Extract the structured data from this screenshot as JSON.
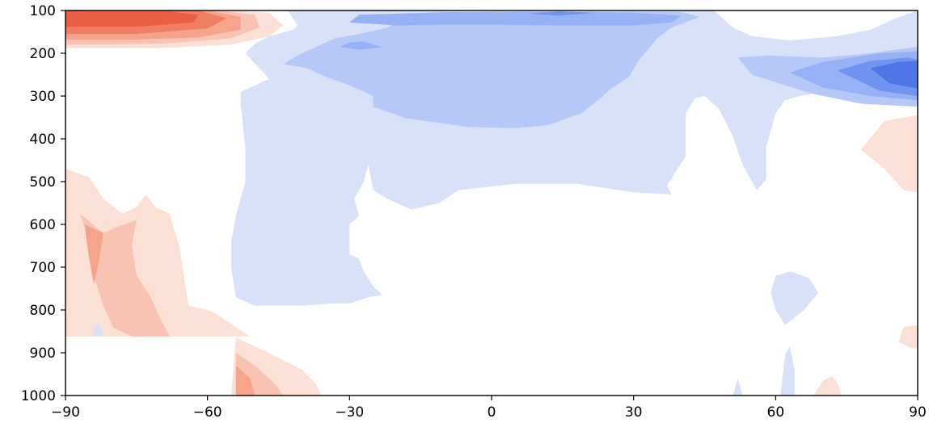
{
  "chart_data": {
    "type": "heatmap",
    "subtype": "filled-contour",
    "title": "",
    "xlabel": "",
    "ylabel": "",
    "xlim": [
      -90,
      90
    ],
    "ylim": [
      1000,
      100
    ],
    "x_ticks": [
      -90,
      -60,
      -30,
      0,
      30,
      60,
      90
    ],
    "x_tick_labels": [
      "−90",
      "−60",
      "−30",
      "0",
      "30",
      "60",
      "90"
    ],
    "y_ticks": [
      100,
      200,
      300,
      400,
      500,
      600,
      700,
      800,
      900,
      1000
    ],
    "y_tick_labels": [
      "100",
      "200",
      "300",
      "400",
      "500",
      "600",
      "700",
      "800",
      "900",
      "1000"
    ],
    "y_inverted": true,
    "grid": false,
    "legend": "none",
    "colormap": "coolwarm",
    "level_colors": {
      "b4": "#4f76e6",
      "b3": "#7094f0",
      "b2": "#97b1f6",
      "b1": "#b5c8f8",
      "b0": "#d9e1f9",
      "r0": "#fbe0d6",
      "r1": "#f8c3b3",
      "r2": "#f6a38c",
      "r3": "#f07e62",
      "r4": "#e85f44"
    },
    "regions": [
      {
        "level": "r0",
        "points": [
          [
            -90,
            100
          ],
          [
            -55,
            100
          ],
          [
            -47,
            105
          ],
          [
            -44,
            135
          ],
          [
            -47,
            160
          ],
          [
            -55,
            180
          ],
          [
            -70,
            188
          ],
          [
            -90,
            188
          ]
        ]
      },
      {
        "level": "r1",
        "points": [
          [
            -90,
            100
          ],
          [
            -58,
            100
          ],
          [
            -50,
            110
          ],
          [
            -49,
            140
          ],
          [
            -55,
            165
          ],
          [
            -70,
            178
          ],
          [
            -90,
            180
          ]
        ]
      },
      {
        "level": "r2",
        "points": [
          [
            -90,
            100
          ],
          [
            -60,
            100
          ],
          [
            -53,
            115
          ],
          [
            -53,
            145
          ],
          [
            -62,
            163
          ],
          [
            -75,
            168
          ],
          [
            -90,
            168
          ]
        ]
      },
      {
        "level": "r3",
        "points": [
          [
            -90,
            100
          ],
          [
            -62,
            100
          ],
          [
            -56,
            118
          ],
          [
            -60,
            142
          ],
          [
            -75,
            155
          ],
          [
            -90,
            155
          ]
        ]
      },
      {
        "level": "r4",
        "points": [
          [
            -90,
            100
          ],
          [
            -70,
            100
          ],
          [
            -62,
            110
          ],
          [
            -63,
            128
          ],
          [
            -75,
            138
          ],
          [
            -90,
            138
          ]
        ]
      },
      {
        "level": "r0",
        "points": [
          [
            -90,
            470
          ],
          [
            -85,
            490
          ],
          [
            -82,
            540
          ],
          [
            -78,
            575
          ],
          [
            -75,
            560
          ],
          [
            -73,
            530
          ],
          [
            -71,
            560
          ],
          [
            -68,
            575
          ],
          [
            -66,
            650
          ],
          [
            -64,
            790
          ],
          [
            -60,
            800
          ],
          [
            -58,
            810
          ],
          [
            -53,
            848
          ],
          [
            -51,
            862
          ],
          [
            -90,
            862
          ]
        ]
      },
      {
        "level": "r1",
        "points": [
          [
            -87,
            575
          ],
          [
            -85,
            630
          ],
          [
            -84,
            720
          ],
          [
            -82,
            790
          ],
          [
            -80,
            840
          ],
          [
            -76,
            862
          ],
          [
            -68,
            862
          ],
          [
            -70,
            820
          ],
          [
            -72,
            770
          ],
          [
            -75,
            720
          ],
          [
            -76,
            650
          ],
          [
            -75,
            590
          ],
          [
            -79,
            605
          ],
          [
            -82,
            620
          ]
        ]
      },
      {
        "level": "r2",
        "points": [
          [
            -86,
            600
          ],
          [
            -85,
            680
          ],
          [
            -84,
            740
          ],
          [
            -83,
            690
          ],
          [
            -82,
            620
          ]
        ]
      },
      {
        "level": "r0",
        "points": [
          [
            -54,
            865
          ],
          [
            -48,
            895
          ],
          [
            -40,
            940
          ],
          [
            -37,
            975
          ],
          [
            -36,
            1000
          ],
          [
            -55,
            1000
          ]
        ]
      },
      {
        "level": "r1",
        "points": [
          [
            -54,
            900
          ],
          [
            -50,
            930
          ],
          [
            -46,
            970
          ],
          [
            -44,
            1000
          ],
          [
            -54,
            1000
          ]
        ]
      },
      {
        "level": "r2",
        "points": [
          [
            -54,
            930
          ],
          [
            -51,
            960
          ],
          [
            -50,
            1000
          ],
          [
            -54,
            1000
          ]
        ]
      },
      {
        "level": "r0",
        "points": [
          [
            90,
            345
          ],
          [
            83,
            358
          ],
          [
            78,
            425
          ],
          [
            83,
            470
          ],
          [
            87,
            520
          ],
          [
            90,
            525
          ]
        ]
      },
      {
        "level": "r0",
        "points": [
          [
            90,
            835
          ],
          [
            87,
            840
          ],
          [
            86,
            875
          ],
          [
            89,
            890
          ],
          [
            90,
            890
          ]
        ]
      },
      {
        "level": "r0",
        "points": [
          [
            68,
            1000
          ],
          [
            70,
            965
          ],
          [
            72,
            955
          ],
          [
            73,
            970
          ],
          [
            74,
            1000
          ]
        ]
      },
      {
        "level": "b0",
        "points": [
          [
            -43,
            100
          ],
          [
            -41,
            135
          ],
          [
            -42,
            145
          ],
          [
            -47,
            160
          ],
          [
            -50,
            178
          ],
          [
            -52,
            200
          ],
          [
            -47,
            260
          ],
          [
            -53,
            290
          ],
          [
            -53,
            320
          ],
          [
            -52,
            420
          ],
          [
            -52,
            500
          ],
          [
            -54,
            580
          ],
          [
            -55,
            640
          ],
          [
            -55,
            700
          ],
          [
            -54,
            770
          ],
          [
            -50,
            790
          ],
          [
            -40,
            790
          ],
          [
            -34,
            785
          ],
          [
            -30,
            785
          ],
          [
            -26,
            770
          ],
          [
            -23,
            765
          ],
          [
            -25,
            745
          ],
          [
            -27,
            710
          ],
          [
            -28,
            680
          ],
          [
            -30,
            670
          ],
          [
            -30,
            600
          ],
          [
            -28,
            580
          ],
          [
            -29,
            540
          ],
          [
            -27,
            500
          ],
          [
            -26,
            460
          ],
          [
            -25,
            520
          ],
          [
            -22,
            540
          ],
          [
            -17,
            565
          ],
          [
            -11,
            550
          ],
          [
            -7,
            520
          ],
          [
            5,
            505
          ],
          [
            18,
            505
          ],
          [
            30,
            525
          ],
          [
            38,
            530
          ],
          [
            37,
            510
          ],
          [
            41,
            440
          ],
          [
            41,
            340
          ],
          [
            43,
            305
          ],
          [
            45,
            300
          ],
          [
            48,
            330
          ],
          [
            51,
            395
          ],
          [
            53,
            460
          ],
          [
            55,
            500
          ],
          [
            56,
            520
          ],
          [
            58,
            495
          ],
          [
            58,
            420
          ],
          [
            60,
            340
          ],
          [
            62,
            310
          ],
          [
            65,
            300
          ],
          [
            70,
            290
          ],
          [
            90,
            290
          ],
          [
            90,
            100
          ],
          [
            85,
            120
          ],
          [
            80,
            145
          ],
          [
            73,
            160
          ],
          [
            63,
            170
          ],
          [
            55,
            160
          ],
          [
            51,
            140
          ],
          [
            49,
            120
          ],
          [
            47,
            100
          ]
        ]
      },
      {
        "level": "b1",
        "points": [
          [
            -36,
            180
          ],
          [
            -33,
            165
          ],
          [
            -28,
            155
          ],
          [
            -22,
            140
          ],
          [
            -18,
            112
          ],
          [
            -10,
            108
          ],
          [
            5,
            103
          ],
          [
            20,
            103
          ],
          [
            40,
            103
          ],
          [
            44,
            115
          ],
          [
            38,
            140
          ],
          [
            35,
            165
          ],
          [
            31,
            218
          ],
          [
            29,
            255
          ],
          [
            25,
            285
          ],
          [
            23,
            305
          ],
          [
            19,
            340
          ],
          [
            12,
            368
          ],
          [
            5,
            375
          ],
          [
            -5,
            372
          ],
          [
            -18,
            352
          ],
          [
            -25,
            325
          ],
          [
            -25,
            300
          ],
          [
            -30,
            275
          ],
          [
            -35,
            255
          ],
          [
            -39,
            235
          ],
          [
            -44,
            225
          ],
          [
            -41,
            205
          ]
        ]
      },
      {
        "level": "b2",
        "points": [
          [
            -28,
            110
          ],
          [
            -10,
            104
          ],
          [
            10,
            103
          ],
          [
            30,
            105
          ],
          [
            40,
            112
          ],
          [
            38,
            128
          ],
          [
            30,
            135
          ],
          [
            15,
            135
          ],
          [
            0,
            133
          ],
          [
            -10,
            133
          ],
          [
            -20,
            135
          ],
          [
            -30,
            128
          ]
        ]
      },
      {
        "level": "b2",
        "points": [
          [
            -32,
            185
          ],
          [
            -30,
            175
          ],
          [
            -27,
            172
          ],
          [
            -23,
            186
          ],
          [
            -28,
            192
          ]
        ]
      },
      {
        "level": "b3",
        "points": [
          [
            8,
            107
          ],
          [
            14,
            102
          ],
          [
            22,
            105
          ],
          [
            14,
            112
          ]
        ]
      },
      {
        "level": "b1",
        "points": [
          [
            52,
            210
          ],
          [
            58,
            205
          ],
          [
            70,
            210
          ],
          [
            80,
            200
          ],
          [
            90,
            185
          ],
          [
            90,
            325
          ],
          [
            78,
            318
          ],
          [
            68,
            295
          ],
          [
            62,
            275
          ],
          [
            55,
            250
          ]
        ]
      },
      {
        "level": "b2",
        "points": [
          [
            63,
            245
          ],
          [
            70,
            220
          ],
          [
            82,
            200
          ],
          [
            90,
            195
          ],
          [
            90,
            310
          ],
          [
            80,
            300
          ],
          [
            70,
            280
          ]
        ]
      },
      {
        "level": "b3",
        "points": [
          [
            73,
            240
          ],
          [
            80,
            218
          ],
          [
            88,
            210
          ],
          [
            90,
            215
          ],
          [
            90,
            300
          ],
          [
            82,
            288
          ]
        ]
      },
      {
        "level": "b4",
        "points": [
          [
            80,
            235
          ],
          [
            86,
            220
          ],
          [
            90,
            218
          ],
          [
            90,
            282
          ],
          [
            84,
            270
          ]
        ]
      },
      {
        "level": "b0",
        "points": [
          [
            60,
            720
          ],
          [
            63,
            710
          ],
          [
            67,
            725
          ],
          [
            69,
            760
          ],
          [
            66,
            800
          ],
          [
            62,
            835
          ],
          [
            60,
            800
          ],
          [
            59,
            760
          ]
        ]
      },
      {
        "level": "b0",
        "points": [
          [
            61,
            1000
          ],
          [
            62,
            905
          ],
          [
            63,
            885
          ],
          [
            64,
            940
          ],
          [
            64,
            1000
          ]
        ]
      },
      {
        "level": "b0",
        "points": [
          [
            51,
            1000
          ],
          [
            52,
            960
          ],
          [
            53,
            1000
          ]
        ]
      },
      {
        "level": "b0",
        "points": [
          [
            -84,
            840
          ],
          [
            -83,
            830
          ],
          [
            -82,
            860
          ],
          [
            -84,
            862
          ]
        ]
      }
    ]
  }
}
